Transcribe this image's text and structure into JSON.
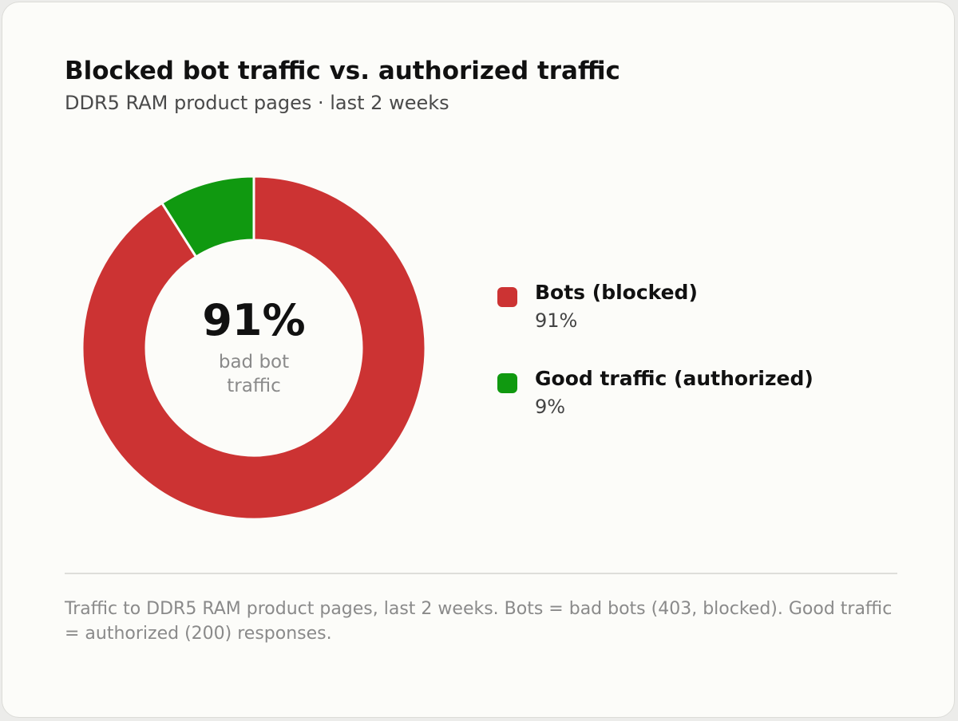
{
  "title": "Blocked bot traffic vs. authorized traffic",
  "subtitle": "DDR5 RAM product pages · last 2 weeks",
  "center": {
    "value": "91%",
    "label_line1": "bad bot",
    "label_line2": "traffic"
  },
  "chart_data": {
    "type": "pie",
    "title": "Blocked bot traffic vs. authorized traffic",
    "subtitle": "DDR5 RAM product pages · last 2 weeks",
    "donut": true,
    "legend_position": "right",
    "series": [
      {
        "name": "Bots (blocked)",
        "value": 91,
        "value_label": "91%",
        "color": "#cc3333"
      },
      {
        "name": "Good traffic (authorized)",
        "value": 9,
        "value_label": "9%",
        "color": "#109910"
      }
    ]
  },
  "footnote": "Traffic to DDR5 RAM product pages, last 2 weeks. Bots = bad bots (403, blocked). Good traffic = authorized (200) responses."
}
